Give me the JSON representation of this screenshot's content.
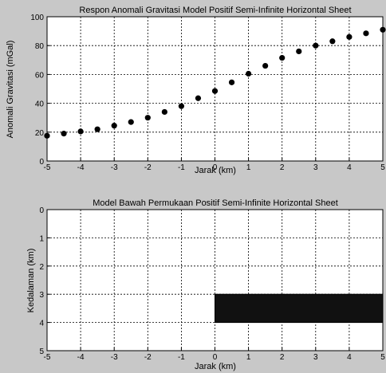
{
  "figure": {
    "background": "#c8c8c8",
    "axes_background": "#ffffff",
    "grid_color": "#000000"
  },
  "chart_data": [
    {
      "type": "scatter",
      "title": "Respon Anomali Gravitasi Model Positif Semi-Infinite Horizontal Sheet",
      "xlabel": "Jarak (km)",
      "ylabel": "Anomali Gravitasi (mGal)",
      "xlim": [
        -5,
        5
      ],
      "ylim": [
        0,
        100
      ],
      "xticks": [
        "-5",
        "-4",
        "-3",
        "-2",
        "-1",
        "0",
        "1",
        "2",
        "3",
        "4",
        "5"
      ],
      "yticks": [
        "0",
        "20",
        "40",
        "60",
        "80",
        "100"
      ],
      "grid": true,
      "marker_color": "#000000",
      "x": [
        -5,
        -4.5,
        -4,
        -3.5,
        -3,
        -2.5,
        -2,
        -1.5,
        -1,
        -0.5,
        0,
        0.5,
        1,
        1.5,
        2,
        2.5,
        3,
        3.5,
        4,
        4.5,
        5
      ],
      "y": [
        17.5,
        19,
        20.5,
        22,
        24.5,
        27,
        30,
        34,
        38,
        43.5,
        48.5,
        54.5,
        60.5,
        66,
        71.5,
        76,
        80,
        83,
        86,
        88.5,
        91
      ]
    },
    {
      "type": "area",
      "title": "Model Bawah Permukaan Positif Semi-Infinite Horizontal Sheet",
      "xlabel": "Jarak (km)",
      "ylabel": "Kedalaman (km)",
      "xlim": [
        -5,
        5
      ],
      "ylim": [
        0,
        5
      ],
      "y_reversed": true,
      "xticks": [
        "-5",
        "-4",
        "-3",
        "-2",
        "-1",
        "0",
        "1",
        "2",
        "3",
        "4",
        "5"
      ],
      "yticks": [
        "0",
        "1",
        "2",
        "3",
        "4",
        "5"
      ],
      "grid": true,
      "body": {
        "x_start": 0,
        "x_end": 5,
        "top_depth": 3,
        "bottom_depth": 4,
        "color": "#111111"
      }
    }
  ]
}
